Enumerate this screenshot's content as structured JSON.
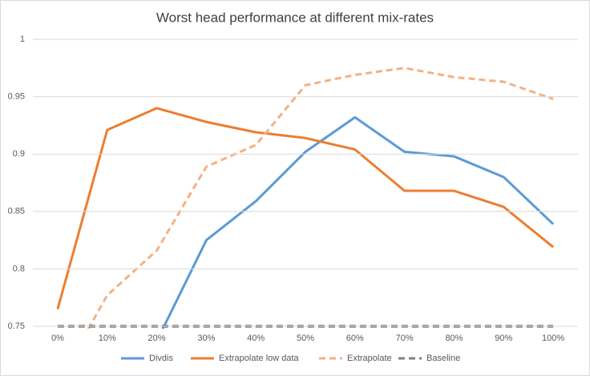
{
  "chart_data": {
    "type": "line",
    "title": "Worst head performance at different mix-rates",
    "categories": [
      "0%",
      "10%",
      "20%",
      "30%",
      "40%",
      "50%",
      "60%",
      "70%",
      "80%",
      "90%",
      "100%"
    ],
    "series": [
      {
        "name": "Divdis",
        "color": "#5b9bd5",
        "dashed": false,
        "values": [
          null,
          null,
          0.737,
          0.825,
          0.859,
          0.902,
          0.932,
          0.902,
          0.898,
          0.88,
          0.839
        ]
      },
      {
        "name": "Extrapolate low data",
        "color": "#ed7d31",
        "dashed": false,
        "values": [
          0.765,
          0.921,
          0.94,
          0.928,
          0.919,
          0.914,
          0.904,
          0.868,
          0.868,
          0.854,
          0.819
        ]
      },
      {
        "name": "Extrapolate",
        "color": "#f4b183",
        "dashed": true,
        "values": [
          0.7,
          0.777,
          0.816,
          0.889,
          0.908,
          0.96,
          0.969,
          0.975,
          0.967,
          0.963,
          0.948
        ]
      },
      {
        "name": "Baseline",
        "color": "#7f7f7f",
        "dashed": true,
        "values": [
          0.75,
          0.75,
          0.75,
          0.75,
          0.75,
          0.75,
          0.75,
          0.75,
          0.75,
          0.75,
          0.75
        ]
      }
    ],
    "ylim": [
      0.75,
      1
    ],
    "yticks": [
      0.75,
      0.8,
      0.85,
      0.9,
      0.95,
      1
    ],
    "grid": true,
    "legend": "bottom"
  }
}
